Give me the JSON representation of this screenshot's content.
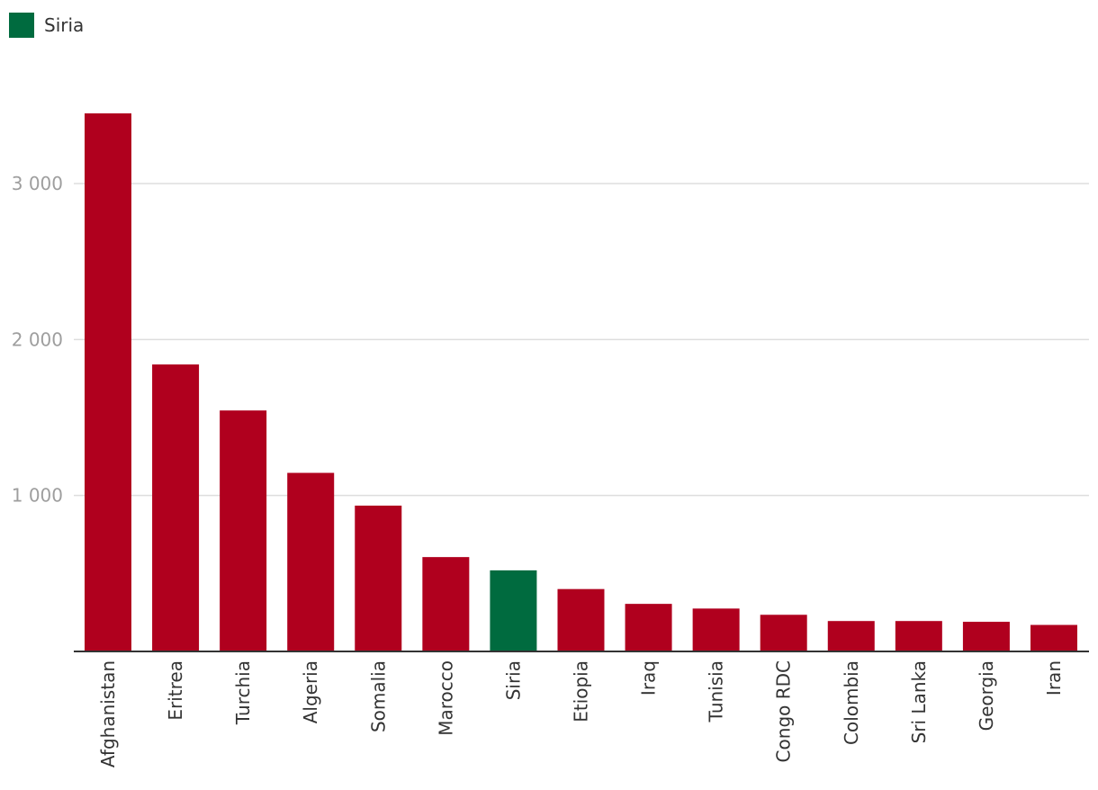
{
  "legend": {
    "label": "Siria",
    "color": "#006b3f"
  },
  "colors": {
    "default_bar": "#b0001e",
    "highlight_bar": "#006b3f",
    "grid": "#dddddd",
    "axis": "#333333"
  },
  "chart_data": {
    "type": "bar",
    "categories": [
      "Afghanistan",
      "Eritrea",
      "Turchia",
      "Algeria",
      "Somalia",
      "Marocco",
      "Siria",
      "Etiopia",
      "Iraq",
      "Tunisia",
      "Congo RDC",
      "Colombia",
      "Sri Lanka",
      "Georgia",
      "Iran"
    ],
    "values": [
      3450,
      1840,
      1545,
      1145,
      935,
      605,
      520,
      400,
      305,
      275,
      235,
      195,
      195,
      190,
      170
    ],
    "highlight": "Siria",
    "title": "",
    "xlabel": "",
    "ylabel": "",
    "ylim": [
      0,
      3500
    ],
    "yticks": [
      1000,
      2000,
      3000
    ],
    "ytick_labels": [
      "1 000",
      "2 000",
      "3 000"
    ],
    "grid": true,
    "legend_position": "top-left"
  }
}
